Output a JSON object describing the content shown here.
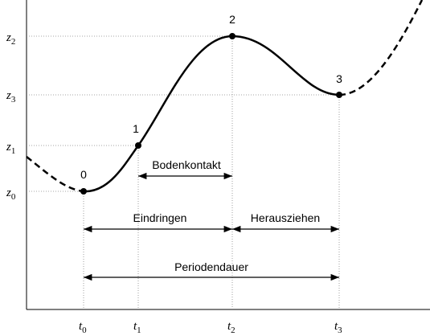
{
  "points": [
    {
      "label": "0",
      "t": {
        "var": "t",
        "sub": "0"
      },
      "z": {
        "var": "z",
        "sub": "0"
      }
    },
    {
      "label": "1",
      "t": {
        "var": "t",
        "sub": "1"
      },
      "z": {
        "var": "z",
        "sub": "1"
      }
    },
    {
      "label": "2",
      "t": {
        "var": "t",
        "sub": "2"
      },
      "z": {
        "var": "z",
        "sub": "2"
      }
    },
    {
      "label": "3",
      "t": {
        "var": "t",
        "sub": "3"
      },
      "z": {
        "var": "z",
        "sub": "3"
      }
    }
  ],
  "spans": {
    "contact": "Bodenkontakt",
    "penetrate": "Eindringen",
    "extract": "Herausziehen",
    "period": "Periodendauer"
  }
}
